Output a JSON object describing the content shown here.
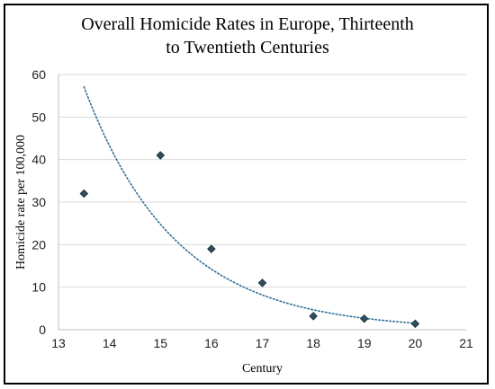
{
  "chart_data": {
    "type": "scatter",
    "title_lines": [
      "Overall Homicide Rates in Europe, Thirteenth",
      "to Twentieth Centuries"
    ],
    "xlabel": "Century",
    "ylabel": "Homicide rate per 100,000",
    "xlim": [
      13,
      21
    ],
    "ylim": [
      0,
      60
    ],
    "x_ticks": [
      13,
      14,
      15,
      16,
      17,
      18,
      19,
      20,
      21
    ],
    "y_ticks": [
      0,
      10,
      20,
      30,
      40,
      50,
      60
    ],
    "grid": "horizontal",
    "legend": "none",
    "series": [
      {
        "points": [
          {
            "x": 13.5,
            "y": 32
          },
          {
            "x": 15,
            "y": 41
          },
          {
            "x": 16,
            "y": 19
          },
          {
            "x": 17,
            "y": 11
          },
          {
            "x": 18,
            "y": 3.2
          },
          {
            "x": 19,
            "y": 2.6
          },
          {
            "x": 20,
            "y": 1.4
          }
        ],
        "marker": "diamond",
        "color": "#2f4f5f"
      }
    ],
    "trendline": {
      "type": "exponential",
      "style": "dotted",
      "color": "#2e6e96",
      "x_range": [
        13.5,
        20
      ]
    }
  }
}
